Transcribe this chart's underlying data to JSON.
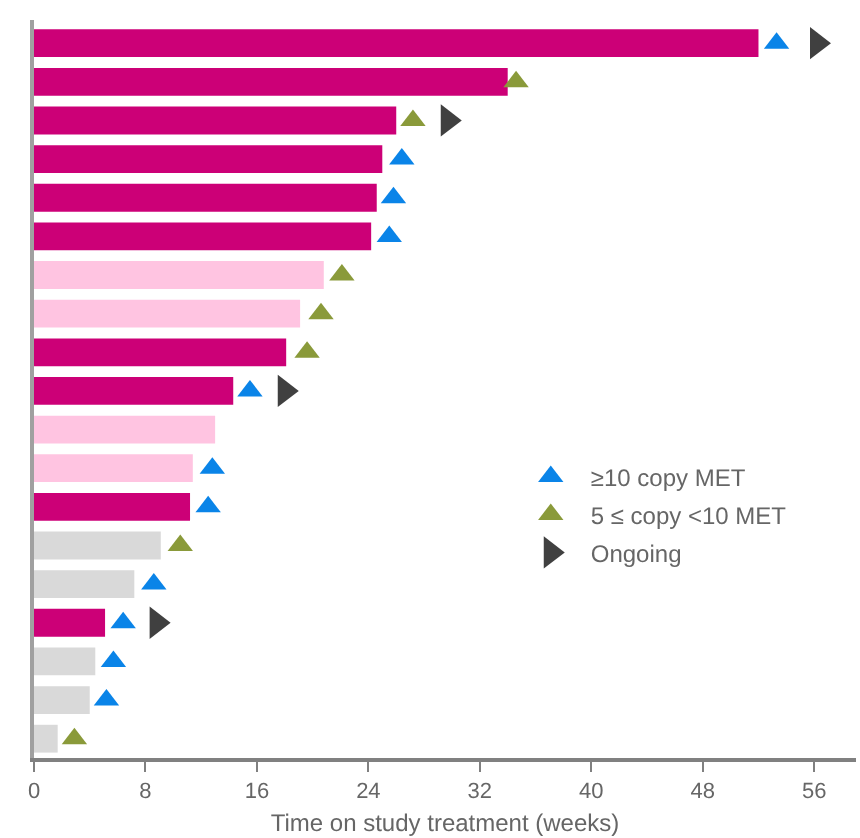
{
  "chart_data": {
    "type": "bar",
    "orientation": "horizontal",
    "xlabel": "Time on study treatment (weeks)",
    "categories": [
      null,
      null,
      null,
      null,
      null,
      null,
      null,
      null,
      null,
      null,
      null,
      null,
      null,
      null,
      null,
      null,
      null,
      null,
      null
    ],
    "series": [
      {
        "values": [
          52,
          34,
          26,
          25,
          24.6,
          24.2,
          20.8,
          19.1,
          18.1,
          14.3,
          13,
          11.4,
          11.2,
          9.1,
          7.2,
          5.1,
          4.4,
          4,
          1.7
        ],
        "colors": [
          "#cc0077",
          "#cc0077",
          "#cc0077",
          "#cc0077",
          "#cc0077",
          "#cc0077",
          "#ffc4e1",
          "#ffc4e1",
          "#cc0077",
          "#cc0077",
          "#ffc4e1",
          "#ffc4e1",
          "#cc0077",
          "#d9d9d9",
          "#d9d9d9",
          "#cc0077",
          "#d9d9d9",
          "#d9d9d9",
          "#d9d9d9"
        ]
      },
      {
        "type": "scatter",
        "name": "≥10 copy MET",
        "color": "#0a84e8",
        "marker": "triangle",
        "values": [
          53.3,
          null,
          null,
          26.4,
          25.8,
          25.5,
          null,
          null,
          null,
          15.5,
          null,
          12.8,
          12.5,
          null,
          8.6,
          6.4,
          5.7,
          5.2,
          null
        ]
      },
      {
        "type": "scatter",
        "name": "5 ≤ copy <10 MET",
        "color": "#8a9a3a",
        "marker": "triangle",
        "values": [
          null,
          34.6,
          27.2,
          null,
          null,
          null,
          22.1,
          20.6,
          19.6,
          null,
          null,
          null,
          null,
          10.5,
          null,
          null,
          null,
          null,
          2.9
        ]
      },
      {
        "type": "scatter",
        "name": "Ongoing",
        "color": "#404040",
        "values": [
          56.2,
          null,
          29.7,
          null,
          null,
          null,
          null,
          null,
          null,
          18,
          null,
          null,
          null,
          null,
          null,
          8.8,
          null,
          null,
          null
        ]
      }
    ],
    "xlim": [
      0,
      59
    ],
    "xticks": [
      0,
      8,
      16,
      24,
      32,
      40,
      48,
      56
    ],
    "legend": "right",
    "tick_labels": "x"
  }
}
